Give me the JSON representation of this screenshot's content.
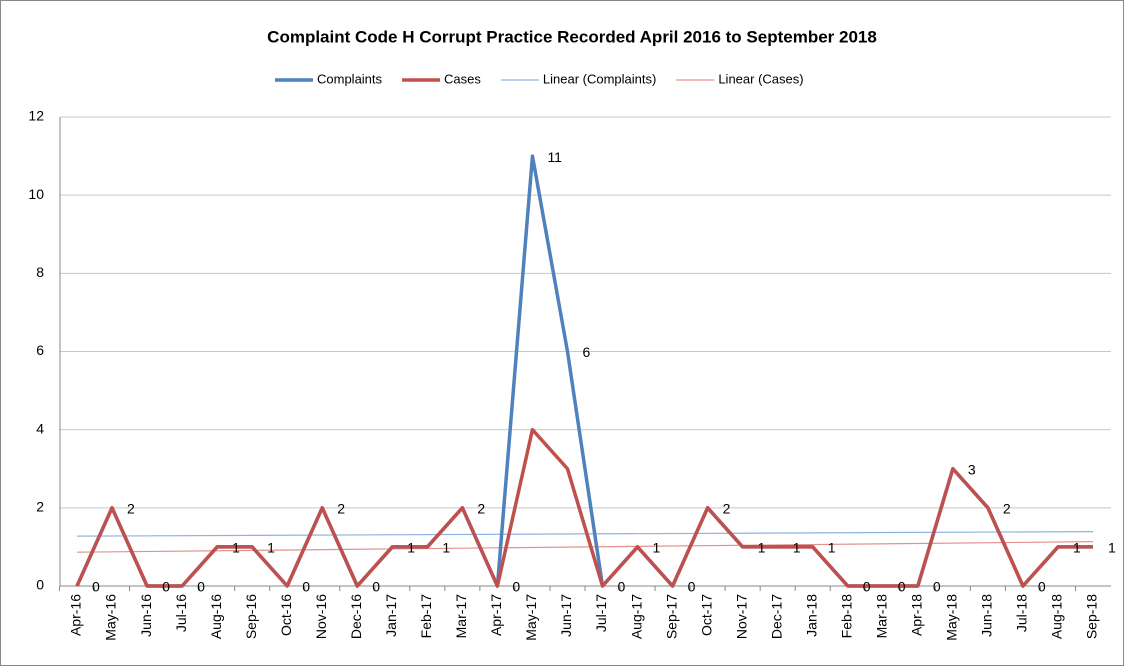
{
  "chart_data": {
    "type": "line",
    "title": "Complaint Code H Corrupt Practice Recorded April 2016 to September 2018",
    "categories": [
      "Apr-16",
      "May-16",
      "Jun-16",
      "Jul-16",
      "Aug-16",
      "Sep-16",
      "Oct-16",
      "Nov-16",
      "Dec-16",
      "Jan-17",
      "Feb-17",
      "Mar-17",
      "Apr-17",
      "May-17",
      "Jun-17",
      "Jul-17",
      "Aug-17",
      "Sep-17",
      "Oct-17",
      "Nov-17",
      "Dec-17",
      "Jan-18",
      "Feb-18",
      "Mar-18",
      "Apr-18",
      "May-18",
      "Jun-18",
      "Jul-18",
      "Aug-18",
      "Sep-18"
    ],
    "series": [
      {
        "name": "Complaints",
        "color": "#4f81bd",
        "values": [
          0,
          2,
          0,
          0,
          1,
          1,
          0,
          2,
          0,
          1,
          1,
          2,
          0,
          11,
          6,
          0,
          1,
          0,
          2,
          1,
          1,
          1,
          0,
          0,
          0,
          3,
          2,
          0,
          1,
          1
        ]
      },
      {
        "name": "Cases",
        "color": "#c0504d",
        "values": [
          0,
          2,
          0,
          0,
          1,
          1,
          0,
          2,
          0,
          1,
          1,
          2,
          0,
          4,
          3,
          0,
          1,
          0,
          2,
          1,
          1,
          1,
          0,
          0,
          0,
          3,
          2,
          0,
          1,
          1
        ]
      }
    ],
    "trendlines": [
      {
        "name": "Linear (Complaints)",
        "series": 0,
        "color": "#8db3e2"
      },
      {
        "name": "Linear (Cases)",
        "series": 1,
        "color": "#e6908e"
      }
    ],
    "data_labels_series": 0,
    "ylim": [
      0,
      12
    ],
    "yticks": [
      0,
      2,
      4,
      6,
      8,
      10,
      12
    ],
    "grid": true,
    "legend": "top"
  }
}
